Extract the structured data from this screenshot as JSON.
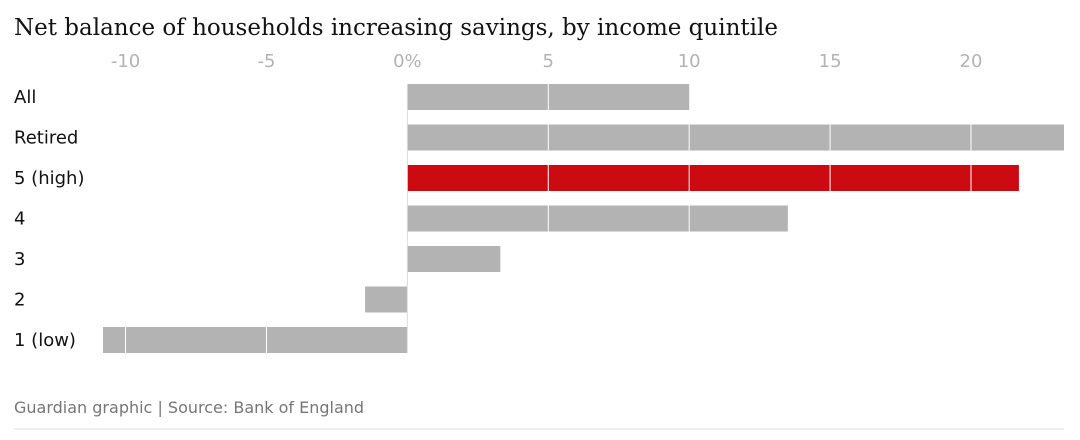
{
  "chart_data": {
    "type": "bar",
    "orientation": "horizontal",
    "title": "Net balance of households increasing savings, by income quintile",
    "categories": [
      "All",
      "Retired",
      "5 (high)",
      "4",
      "3",
      "2",
      "1 (low)"
    ],
    "values": [
      10,
      23.3,
      21.7,
      13.5,
      3.3,
      -1.5,
      -10.8
    ],
    "highlight": [
      false,
      false,
      true,
      false,
      false,
      false,
      false
    ],
    "xlim": [
      -10.8,
      23.3
    ],
    "xticks": [
      {
        "value": -10,
        "label": "-10"
      },
      {
        "value": -5,
        "label": "-5"
      },
      {
        "value": 0,
        "label": "0%"
      },
      {
        "value": 5,
        "label": "5"
      },
      {
        "value": 10,
        "label": "10"
      },
      {
        "value": 15,
        "label": "15"
      },
      {
        "value": 20,
        "label": "20"
      }
    ],
    "gridlines": true,
    "xlabel": "",
    "ylabel": "",
    "source": "Guardian graphic | Source: Bank of England",
    "colors": {
      "bar": "#b3b3b3",
      "highlight": "#cc0a11",
      "gridline": "#ffffff",
      "tick": "#b3b3b3",
      "zero_line": "#dcdcdc",
      "rule": "#dcdcdc"
    }
  }
}
